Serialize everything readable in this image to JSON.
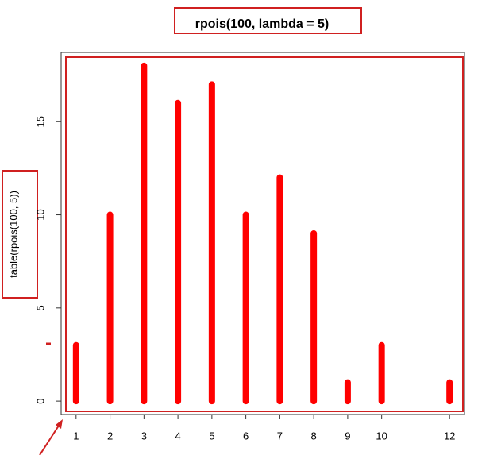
{
  "chart_data": {
    "type": "bar",
    "title": "rpois(100, lambda = 5)",
    "y_label": "table(rpois(100, 5))",
    "x": [
      1,
      2,
      3,
      4,
      5,
      6,
      7,
      8,
      9,
      10,
      12
    ],
    "values": [
      3,
      10,
      18,
      16,
      17,
      10,
      12,
      9,
      1,
      3,
      1
    ],
    "color": "#ff0000",
    "xlim": [
      0.56,
      12.44
    ],
    "xticks": [
      1,
      2,
      3,
      4,
      5,
      6,
      7,
      8,
      9,
      10,
      12
    ],
    "ylim": [
      -0.72,
      18.72
    ],
    "yticks": [
      0,
      5,
      10,
      15
    ]
  }
}
